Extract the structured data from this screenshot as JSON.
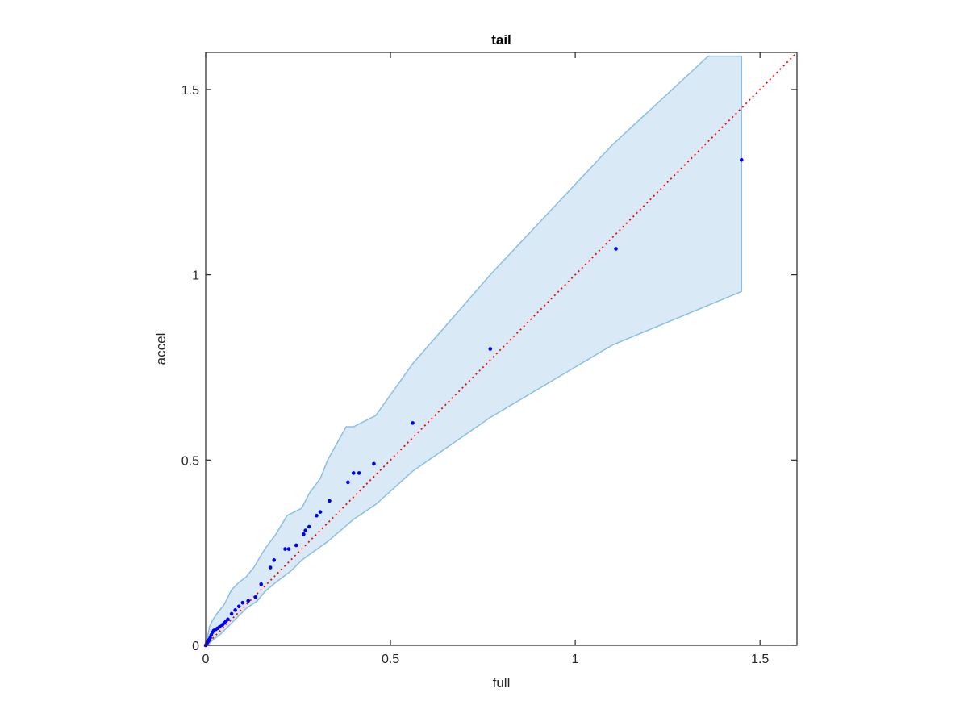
{
  "chart_data": {
    "type": "scatter",
    "title": "tail",
    "xlabel": "full",
    "ylabel": "accel",
    "xlim": [
      0,
      1.6
    ],
    "ylim": [
      0,
      1.6
    ],
    "xticks": [
      0,
      0.5,
      1,
      1.5
    ],
    "yticks": [
      0,
      0.5,
      1,
      1.5
    ],
    "xtick_labels": [
      "0",
      "0.5",
      "1",
      "1.5"
    ],
    "ytick_labels": [
      "0",
      "0.5",
      "1",
      "1.5"
    ],
    "grid": false,
    "colors": {
      "points": "#0000ee",
      "reference_line": "#ff0000",
      "band_fill": "#d9e9f5",
      "band_edge": "#8bbfe0",
      "axes": "#262626"
    },
    "reference_line": {
      "style": "dotted",
      "from": [
        0,
        0
      ],
      "to": [
        1.6,
        1.6
      ]
    },
    "band_upper": [
      [
        0.003,
        0.01
      ],
      [
        0.01,
        0.05
      ],
      [
        0.02,
        0.07
      ],
      [
        0.03,
        0.085
      ],
      [
        0.05,
        0.11
      ],
      [
        0.07,
        0.15
      ],
      [
        0.09,
        0.17
      ],
      [
        0.11,
        0.185
      ],
      [
        0.13,
        0.21
      ],
      [
        0.16,
        0.26
      ],
      [
        0.19,
        0.3
      ],
      [
        0.22,
        0.35
      ],
      [
        0.26,
        0.37
      ],
      [
        0.28,
        0.41
      ],
      [
        0.31,
        0.45
      ],
      [
        0.33,
        0.5
      ],
      [
        0.38,
        0.59
      ],
      [
        0.4,
        0.59
      ],
      [
        0.46,
        0.62
      ],
      [
        0.56,
        0.76
      ],
      [
        0.77,
        1.0
      ],
      [
        1.1,
        1.35
      ],
      [
        1.36,
        1.59
      ],
      [
        1.45,
        1.59
      ]
    ],
    "band_lower": [
      [
        1.45,
        0.955
      ],
      [
        1.1,
        0.81
      ],
      [
        0.77,
        0.615
      ],
      [
        0.56,
        0.47
      ],
      [
        0.46,
        0.38
      ],
      [
        0.4,
        0.34
      ],
      [
        0.33,
        0.28
      ],
      [
        0.26,
        0.23
      ],
      [
        0.23,
        0.2
      ],
      [
        0.19,
        0.17
      ],
      [
        0.16,
        0.145
      ],
      [
        0.14,
        0.12
      ],
      [
        0.11,
        0.1
      ],
      [
        0.08,
        0.07
      ],
      [
        0.06,
        0.05
      ],
      [
        0.04,
        0.03
      ],
      [
        0.02,
        0.015
      ],
      [
        0.01,
        0.005
      ],
      [
        0.003,
        0.0
      ]
    ],
    "points": [
      [
        0.0,
        0.0
      ],
      [
        0.003,
        0.005
      ],
      [
        0.006,
        0.01
      ],
      [
        0.009,
        0.015
      ],
      [
        0.012,
        0.02
      ],
      [
        0.015,
        0.028
      ],
      [
        0.018,
        0.035
      ],
      [
        0.022,
        0.04
      ],
      [
        0.027,
        0.043
      ],
      [
        0.032,
        0.046
      ],
      [
        0.038,
        0.05
      ],
      [
        0.045,
        0.055
      ],
      [
        0.05,
        0.06
      ],
      [
        0.055,
        0.065
      ],
      [
        0.06,
        0.07
      ],
      [
        0.07,
        0.085
      ],
      [
        0.08,
        0.095
      ],
      [
        0.09,
        0.105
      ],
      [
        0.1,
        0.115
      ],
      [
        0.115,
        0.12
      ],
      [
        0.135,
        0.13
      ],
      [
        0.15,
        0.165
      ],
      [
        0.175,
        0.21
      ],
      [
        0.185,
        0.23
      ],
      [
        0.215,
        0.26
      ],
      [
        0.225,
        0.26
      ],
      [
        0.245,
        0.27
      ],
      [
        0.265,
        0.3
      ],
      [
        0.27,
        0.31
      ],
      [
        0.28,
        0.32
      ],
      [
        0.3,
        0.35
      ],
      [
        0.31,
        0.36
      ],
      [
        0.335,
        0.39
      ],
      [
        0.385,
        0.44
      ],
      [
        0.4,
        0.465
      ],
      [
        0.415,
        0.465
      ],
      [
        0.455,
        0.49
      ],
      [
        0.56,
        0.6
      ],
      [
        0.77,
        0.8
      ],
      [
        1.11,
        1.07
      ],
      [
        1.45,
        1.31
      ]
    ]
  }
}
